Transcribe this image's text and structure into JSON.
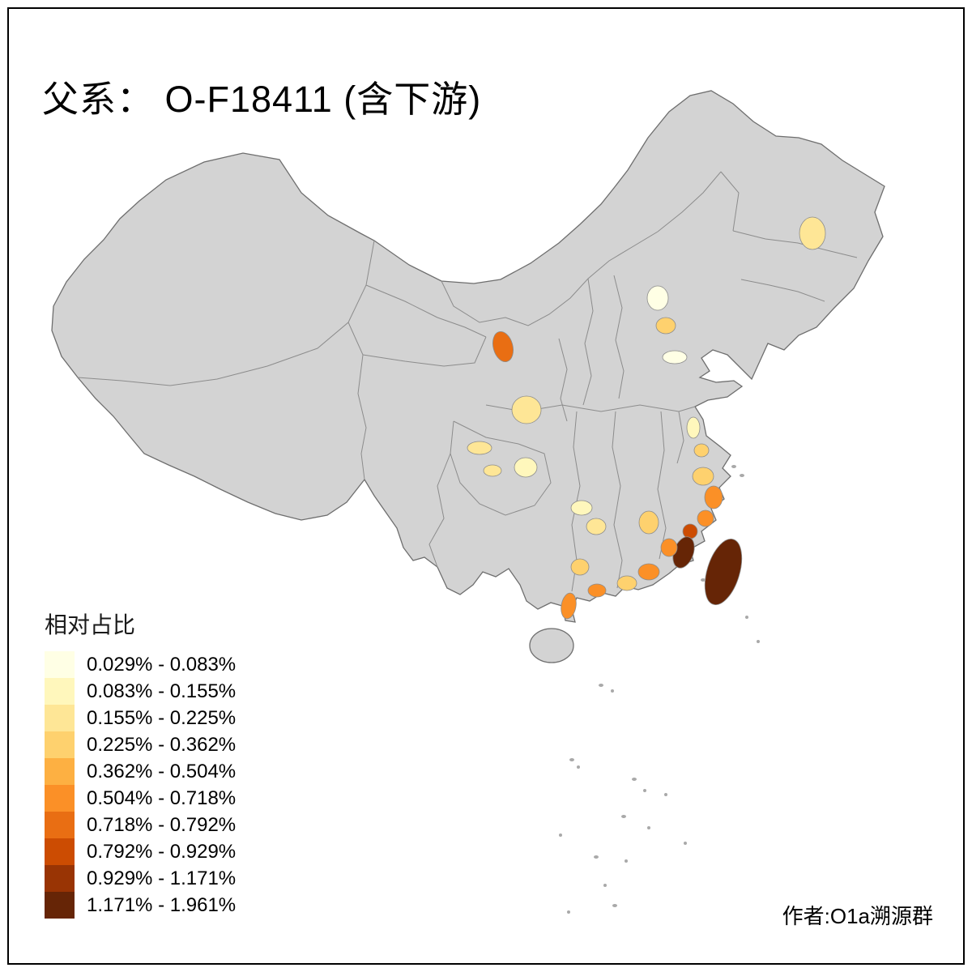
{
  "title": "父系： O-F18411 (含下游)",
  "author": "作者:O1a溯源群",
  "legend": {
    "title": "相对占比",
    "classes": [
      {
        "range": "0.029% - 0.083%",
        "color": "#FFFFE5"
      },
      {
        "range": "0.083% - 0.155%",
        "color": "#FFF7BC"
      },
      {
        "range": "0.155% - 0.225%",
        "color": "#FEE696"
      },
      {
        "range": "0.225% - 0.362%",
        "color": "#FED16E"
      },
      {
        "range": "0.362% - 0.504%",
        "color": "#FDB042"
      },
      {
        "range": "0.504% - 0.718%",
        "color": "#FB9027"
      },
      {
        "range": "0.718% - 0.792%",
        "color": "#E96E13"
      },
      {
        "range": "0.792% - 0.929%",
        "color": "#CC4C02"
      },
      {
        "range": "0.929% - 1.171%",
        "color": "#993404"
      },
      {
        "range": "1.171% - 1.961%",
        "color": "#662506"
      }
    ]
  },
  "map": {
    "base_fill": "#d3d3d3",
    "border_color": "#8c8c8c",
    "outline_color": "#6e6e6e",
    "region_colors": {
      "heilongjiang": "#FEE696",
      "beijing": "#FFFFE5",
      "hebei": "#FED16E",
      "shandong": "#FFFFE5",
      "gansu": "#E96E13",
      "shaanxi": "#FEE696",
      "sichuan_a": "#FEE696",
      "sichuan_b": "#FEE696",
      "chongqing": "#FFF7BC",
      "hubei": "#FFF7BC",
      "jiangsu": "#FFF7BC",
      "shanghai": "#FED16E",
      "zhejiang_north": "#FED16E",
      "zhejiang_coast": "#FB9027",
      "zhejiang_south": "#FB9027",
      "fujian_north": "#CC4C02",
      "fujian_coast": "#662506",
      "fujian_inland": "#FB9027",
      "jiangxi": "#FED16E",
      "hunan": "#FEE696",
      "guangdong_east": "#FB9027",
      "guangdong_pearl": "#FED16E",
      "guangdong_west": "#FB9027",
      "guangxi": "#FED16E",
      "guangxi_coast": "#FB9027",
      "taiwan": "#662506"
    }
  }
}
